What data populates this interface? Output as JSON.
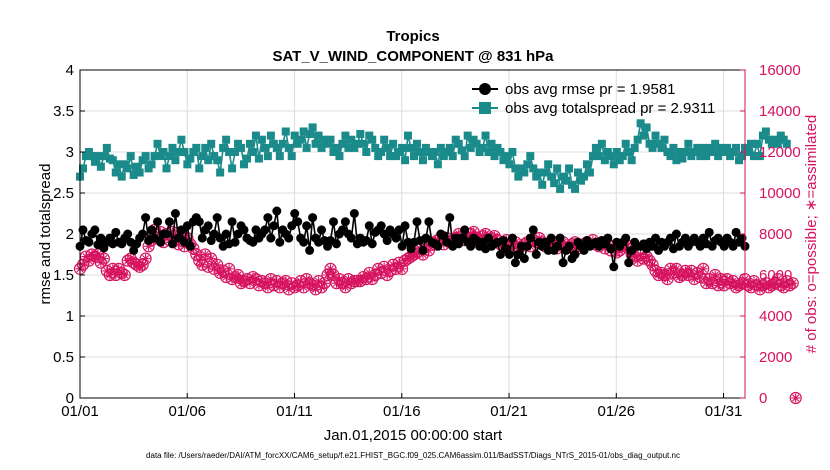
{
  "chart_data": {
    "type": "line",
    "title": "Tropics",
    "subtitle": "SAT_V_WIND_COMPONENT @ 831 hPa",
    "xlabel": "Jan.01,2015 00:00:00 start",
    "ylabel": "rmse and totalspread",
    "ylabel_right": "# of obs: o=possible; ∗=assimilated",
    "footnote": "data file: /Users/raeder/DAI/ATM_forcXX/CAM6_setup/f.e21.FHIST_BGC.f09_025.CAM6assim.011/BadSST/Diags_NTrS_2015-01/obs_diag_output.nc",
    "xlim": [
      1,
      32
    ],
    "ylim": [
      0,
      4
    ],
    "ylim_right": [
      0,
      16000
    ],
    "x_ticks": [
      1,
      6,
      11,
      16,
      21,
      26,
      31
    ],
    "x_tick_labels": [
      "01/01",
      "01/06",
      "01/11",
      "01/16",
      "01/21",
      "01/26",
      "01/31"
    ],
    "y_ticks": [
      0,
      0.5,
      1,
      1.5,
      2,
      2.5,
      3,
      3.5,
      4
    ],
    "y_tick_labels": [
      "0",
      "0.5",
      "1",
      "1.5",
      "2",
      "2.5",
      "3",
      "3.5",
      "4"
    ],
    "y_ticks_right": [
      0,
      2000,
      4000,
      6000,
      8000,
      10000,
      12000,
      14000,
      16000
    ],
    "y_tick_labels_right": [
      "0",
      "2000",
      "4000",
      "6000",
      "8000",
      "10000",
      "12000",
      "14000",
      "16000"
    ],
    "legend_position": "top-right",
    "colors": {
      "rmse": "#000000",
      "spread": "#1a8a8a",
      "obs": "#d6135f"
    },
    "series": [
      {
        "name": "obs avg rmse pr = 1.9581",
        "marker": "circle",
        "values": [
          1.85,
          2.05,
          1.92,
          1.9,
          2.0,
          2.05,
          1.87,
          1.95,
          1.83,
          1.9,
          1.95,
          1.88,
          2.02,
          1.9,
          1.88,
          1.95,
          2.0,
          1.9,
          1.8,
          1.88,
          1.95,
          2.0,
          2.2,
          1.92,
          2.05,
          1.95,
          2.15,
          1.9,
          2.0,
          2.0,
          2.15,
          1.88,
          2.25,
          1.95,
          2.05,
          1.9,
          2.1,
          1.85,
          2.15,
          2.2,
          2.15,
          1.95,
          2.05,
          2.1,
          1.92,
          2.0,
          2.2,
          1.95,
          1.85,
          2.0,
          1.88,
          2.15,
          1.9,
          2.0,
          2.1,
          2.05,
          1.95,
          1.92,
          1.9,
          2.05,
          1.95,
          2.0,
          2.05,
          2.2,
          1.95,
          2.1,
          2.28,
          1.9,
          2.05,
          2.0,
          1.95,
          2.1,
          2.25,
          2.15,
          1.95,
          1.9,
          2.1,
          1.8,
          2.2,
          1.95,
          1.9,
          2.05,
          1.92,
          1.85,
          1.92,
          2.15,
          1.88,
          2.0,
          2.05,
          2.15,
          2.0,
          1.95,
          2.25,
          1.88,
          1.95,
          1.9,
          1.92,
          2.1,
          1.88,
          2.02,
          2.05,
          2.1,
          2.0,
          1.92,
          2.05,
          2.0,
          1.95,
          2.05,
          1.85,
          2.1,
          1.9,
          1.82,
          1.9,
          2.15,
          1.92,
          1.8,
          1.95,
          2.15,
          1.9,
          1.88,
          1.85,
          2.0,
          1.98,
          1.9,
          2.2,
          1.85,
          1.95,
          1.88,
          1.95,
          2.05,
          1.9,
          1.85,
          1.95,
          1.92,
          1.85,
          1.9,
          1.82,
          1.95,
          1.85,
          1.88,
          1.9,
          1.75,
          1.92,
          1.82,
          1.75,
          1.95,
          1.65,
          1.75,
          1.85,
          1.7,
          1.85,
          1.95,
          2.05,
          1.75,
          1.9,
          1.85,
          1.9,
          1.8,
          1.95,
          1.8,
          1.85,
          1.95,
          1.65,
          1.8,
          1.85,
          1.7,
          1.75,
          1.9,
          1.85,
          1.8,
          1.92,
          1.85,
          1.88,
          1.9,
          1.85,
          1.92,
          1.88,
          1.95,
          1.82,
          1.6,
          1.9,
          1.85,
          1.9,
          1.95,
          1.65,
          1.8,
          1.9,
          1.85,
          1.85,
          1.88,
          1.82,
          1.9,
          1.85,
          1.95,
          1.8,
          1.9,
          1.85,
          1.9,
          1.95,
          1.82,
          2.0,
          1.85,
          1.9,
          1.95,
          1.85,
          1.9,
          1.95,
          1.9,
          1.85,
          1.95,
          1.88,
          2.02,
          1.85,
          1.92,
          1.95,
          1.9,
          1.85,
          1.95,
          1.9,
          1.85,
          2.02,
          1.9,
          1.95,
          1.85
        ]
      },
      {
        "name": "obs avg totalspread pr = 2.9311",
        "marker": "square",
        "values": [
          2.7,
          2.8,
          2.95,
          3.0,
          2.95,
          2.88,
          2.95,
          2.82,
          2.95,
          3.05,
          2.92,
          2.9,
          2.75,
          2.85,
          2.7,
          2.85,
          2.8,
          2.95,
          2.72,
          2.82,
          2.75,
          2.9,
          2.95,
          2.8,
          2.85,
          2.95,
          3.1,
          2.95,
          3.0,
          2.8,
          2.95,
          3.05,
          2.9,
          3.0,
          3.15,
          3.0,
          2.85,
          2.92,
          3.0,
          3.05,
          2.8,
          2.95,
          3.05,
          2.9,
          3.1,
          2.95,
          2.9,
          2.75,
          3.05,
          3.15,
          3.0,
          2.8,
          3.0,
          3.1,
          3.05,
          2.85,
          2.92,
          3.1,
          3.0,
          3.2,
          2.92,
          3.15,
          3.05,
          2.95,
          3.2,
          3.1,
          3.05,
          2.95,
          3.1,
          3.25,
          3.05,
          2.95,
          3.2,
          3.1,
          3.15,
          3.25,
          3.05,
          3.22,
          3.3,
          3.1,
          3.2,
          3.05,
          3.15,
          3.1,
          3.15,
          3.0,
          3.05,
          2.95,
          3.1,
          3.2,
          3.05,
          3.15,
          3.05,
          3.1,
          3.22,
          3.1,
          3.0,
          3.2,
          3.15,
          3.05,
          2.95,
          3.0,
          3.15,
          3.05,
          2.95,
          3.1,
          2.95,
          3.0,
          3.05,
          2.9,
          3.2,
          3.05,
          2.95,
          3.1,
          3.0,
          2.9,
          3.05,
          3.0,
          2.95,
          3.0,
          2.85,
          3.05,
          2.95,
          3.0,
          3.05,
          2.95,
          3.15,
          3.1,
          3.02,
          2.95,
          3.2,
          3.05,
          3.15,
          3.1,
          3.0,
          3.05,
          3.2,
          3.0,
          3.1,
          2.95,
          3.05,
          3.0,
          2.9,
          2.95,
          2.85,
          3.0,
          2.8,
          2.7,
          2.8,
          2.75,
          2.85,
          2.95,
          2.8,
          2.7,
          2.75,
          2.6,
          2.75,
          2.85,
          2.7,
          2.62,
          2.8,
          2.55,
          2.7,
          2.65,
          2.8,
          2.6,
          2.55,
          2.75,
          2.65,
          2.7,
          2.85,
          2.75,
          2.95,
          3.05,
          2.95,
          3.1,
          2.9,
          3.0,
          2.95,
          2.85,
          3.0,
          2.9,
          2.95,
          3.1,
          3.0,
          2.9,
          3.05,
          3.15,
          3.35,
          3.2,
          3.3,
          3.1,
          3.05,
          3.2,
          3.1,
          3.05,
          3.15,
          3.0,
          2.95,
          3.05,
          2.9,
          3.0,
          2.92,
          3.0,
          3.1,
          2.95,
          3.0,
          3.05,
          2.95,
          3.05,
          2.95,
          3.05,
          3.0,
          3.1,
          2.95,
          3.05,
          3.0,
          3.05,
          2.95,
          3.0,
          3.05,
          2.9,
          2.95,
          3.05,
          3.0,
          3.1,
          2.95,
          3.1,
          2.95,
          3.2,
          3.25,
          3.15,
          3.1,
          3.15,
          3.1,
          3.2,
          3.15,
          3.1
        ]
      },
      {
        "name": "# of obs: o=possible",
        "axis": "right",
        "marker": "circle-open",
        "values": [
          6300,
          6500,
          6900,
          6700,
          7000,
          6900,
          7000,
          6600,
          6800,
          6200,
          6000,
          6300,
          6000,
          6300,
          6100,
          6000,
          6700,
          6800,
          6600,
          6500,
          6400,
          6500,
          6800,
          7400,
          7700,
          8200,
          7800,
          8100,
          7600,
          8000,
          7700,
          8100,
          7900,
          7500,
          8000,
          7400,
          7800,
          7500,
          7300,
          7000,
          6700,
          6500,
          7000,
          6400,
          6800,
          6300,
          6500,
          6100,
          6200,
          5900,
          6300,
          5800,
          5900,
          6000,
          5600,
          5700,
          5800,
          5600,
          5900,
          5800,
          5500,
          5700,
          5600,
          5400,
          5800,
          5500,
          5700,
          5400,
          5600,
          5700,
          5300,
          5600,
          5400,
          5500,
          5700,
          5400,
          5800,
          5600,
          5500,
          5300,
          5700,
          5400,
          5600,
          6000,
          6300,
          6000,
          5600,
          5800,
          5600,
          5400,
          5800,
          5600,
          5700,
          5700,
          5700,
          5900,
          5800,
          6100,
          5800,
          6000,
          6300,
          6100,
          6400,
          6000,
          6200,
          6500,
          6300,
          6600,
          6300,
          6700,
          6800,
          6900,
          7000,
          7100,
          7300,
          7000,
          7400,
          7200,
          7600,
          7500,
          7700,
          7800,
          7500,
          7800,
          7600,
          7600,
          7800,
          8000,
          7900,
          7700,
          7800,
          8000,
          8100,
          7800,
          7600,
          7900,
          8000,
          7700,
          7800,
          7900,
          7700,
          7500,
          7600,
          7700,
          7400,
          7500,
          7600,
          7300,
          7400,
          7500,
          7600,
          7400,
          7700,
          7600,
          7800,
          7600,
          7400,
          7500,
          7500,
          7600,
          7300,
          7500,
          7600,
          7300,
          7400,
          7500,
          7600,
          7300,
          7400,
          7500,
          7600,
          7500,
          7700,
          7500,
          7400,
          7600,
          7300,
          7500,
          7200,
          7400,
          7100,
          7200,
          7400,
          7500,
          7300,
          7000,
          6900,
          6700,
          7000,
          6800,
          6900,
          6700,
          6500,
          6200,
          6000,
          6100,
          6000,
          5800,
          6300,
          6100,
          6300,
          5900,
          6000,
          6200,
          6000,
          6200,
          5800,
          6100,
          5900,
          6300,
          5600,
          5800,
          5600,
          6000,
          5500,
          5800,
          5500,
          5800,
          5600,
          5700,
          5400,
          5500,
          5600,
          5800,
          5500,
          5400,
          5700,
          5500,
          5300,
          5500,
          5600,
          5400,
          5500,
          5600,
          5800,
          5500,
          5400,
          5700,
          5500,
          5600,
          0
        ]
      },
      {
        "name": "# of obs: ∗=assimilated",
        "axis": "right",
        "marker": "asterisk",
        "values": [
          6300,
          6500,
          6900,
          6700,
          7000,
          6900,
          7000,
          6600,
          6800,
          6200,
          6000,
          6300,
          6000,
          6300,
          6100,
          6000,
          6700,
          6800,
          6600,
          6500,
          6400,
          6500,
          6800,
          7400,
          7700,
          8200,
          7800,
          8100,
          7600,
          8000,
          7700,
          8100,
          7900,
          7500,
          8000,
          7400,
          7800,
          7500,
          7300,
          7000,
          6700,
          6500,
          7000,
          6400,
          6800,
          6300,
          6500,
          6100,
          6200,
          5900,
          6300,
          5800,
          5900,
          6000,
          5600,
          5700,
          5800,
          5600,
          5900,
          5800,
          5500,
          5700,
          5600,
          5400,
          5800,
          5500,
          5700,
          5400,
          5600,
          5700,
          5300,
          5600,
          5400,
          5500,
          5700,
          5400,
          5800,
          5600,
          5500,
          5300,
          5700,
          5400,
          5600,
          6000,
          6300,
          6000,
          5600,
          5800,
          5600,
          5400,
          5800,
          5600,
          5700,
          5700,
          5700,
          5900,
          5800,
          6100,
          5800,
          6000,
          6300,
          6100,
          6400,
          6000,
          6200,
          6500,
          6300,
          6600,
          6300,
          6700,
          6800,
          6900,
          7000,
          7100,
          7300,
          7000,
          7400,
          7200,
          7600,
          7500,
          7700,
          7800,
          7500,
          7800,
          7600,
          7600,
          7800,
          8000,
          7900,
          7700,
          7800,
          8000,
          8100,
          7800,
          7600,
          7900,
          8000,
          7700,
          7800,
          7900,
          7700,
          7500,
          7600,
          7700,
          7400,
          7500,
          7600,
          7300,
          7400,
          7500,
          7600,
          7400,
          7700,
          7600,
          7800,
          7600,
          7400,
          7500,
          7500,
          7600,
          7300,
          7500,
          7600,
          7300,
          7400,
          7500,
          7600,
          7300,
          7400,
          7500,
          7600,
          7500,
          7700,
          7500,
          7400,
          7600,
          7300,
          7500,
          7200,
          7400,
          7100,
          7200,
          7400,
          7500,
          7300,
          7000,
          6900,
          6700,
          7000,
          6800,
          6900,
          6700,
          6500,
          6200,
          6000,
          6100,
          6000,
          5800,
          6300,
          6100,
          6300,
          5900,
          6000,
          6200,
          6000,
          6200,
          5800,
          6100,
          5900,
          6300,
          5600,
          5800,
          5600,
          6000,
          5500,
          5800,
          5500,
          5800,
          5600,
          5700,
          5400,
          5500,
          5600,
          5800,
          5500,
          5400,
          5700,
          5500,
          5300,
          5500,
          5600,
          5400,
          5500,
          5600,
          5800,
          5500,
          5400,
          5700,
          5500,
          5600,
          0
        ]
      }
    ]
  }
}
